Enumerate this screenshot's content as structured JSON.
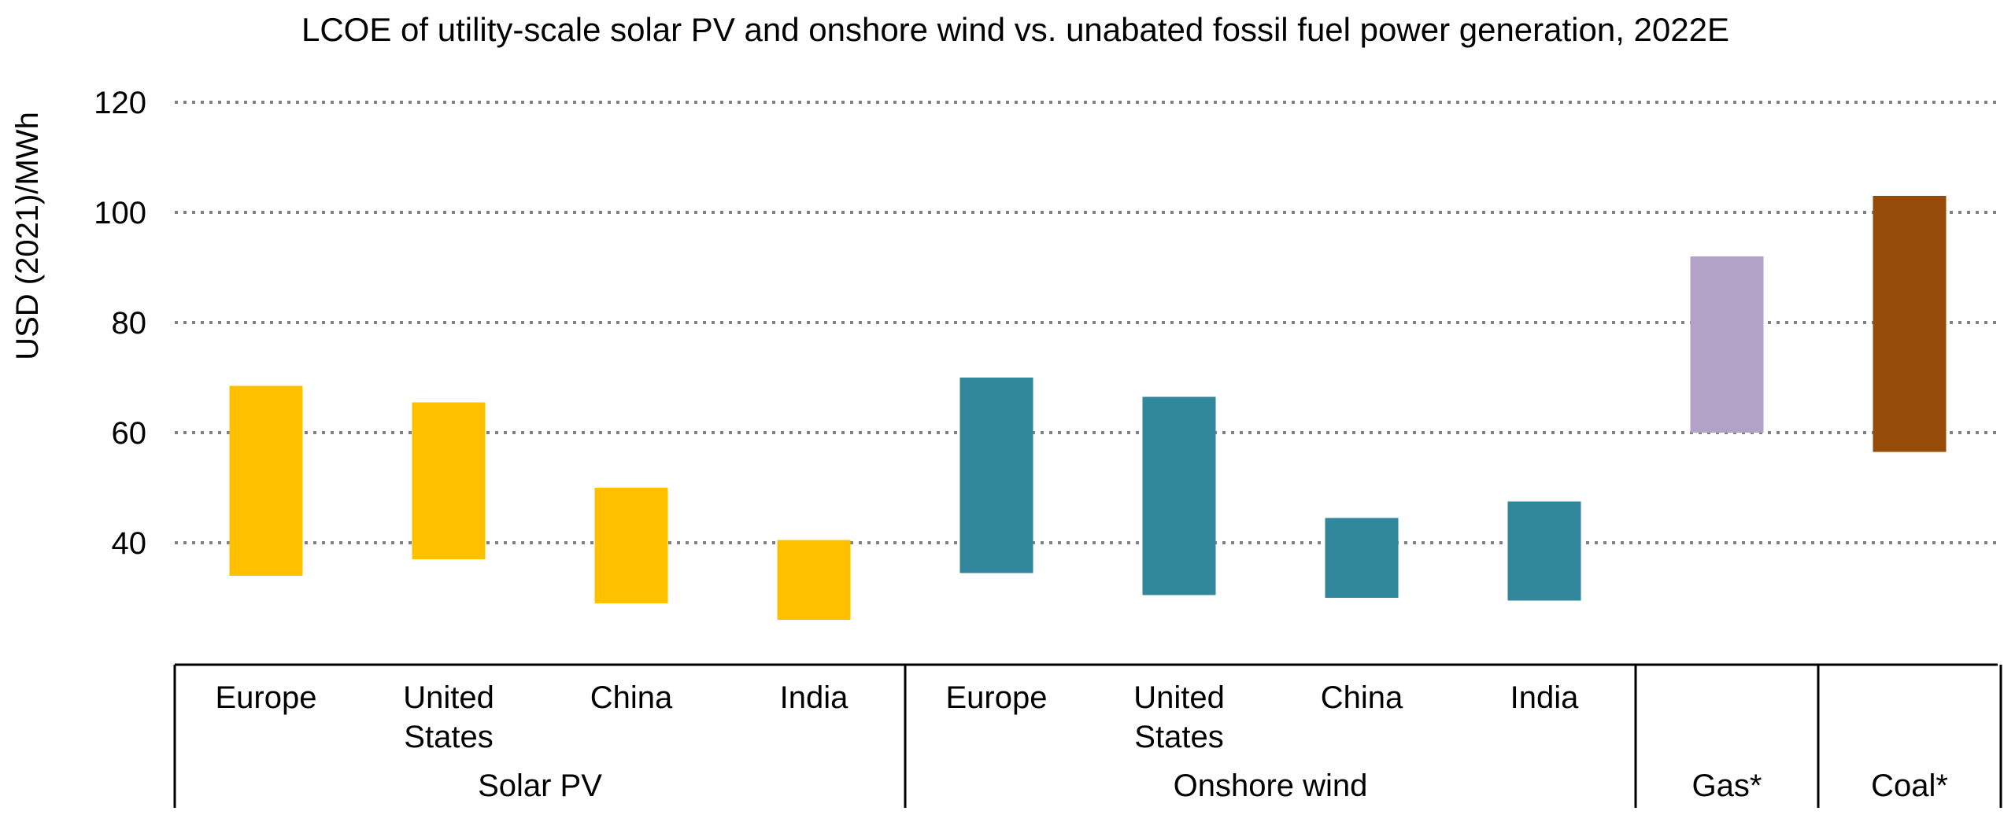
{
  "chart_data": {
    "type": "bar",
    "subtype": "floating-range",
    "title": "LCOE of utility-scale solar PV and onshore wind vs. unabated fossil fuel power generation, 2022E",
    "ylabel": "USD (2021)/MWh",
    "ylim": [
      20,
      120
    ],
    "yticks": [
      40,
      60,
      80,
      100,
      120
    ],
    "grid": true,
    "groups": [
      {
        "name": "Solar PV",
        "color": "#FFC000",
        "categories": [
          {
            "label": [
              "Europe"
            ],
            "low": 34,
            "high": 68.5
          },
          {
            "label": [
              "United",
              "States"
            ],
            "low": 37,
            "high": 65.5
          },
          {
            "label": [
              "China"
            ],
            "low": 29,
            "high": 50
          },
          {
            "label": [
              "India"
            ],
            "low": 26,
            "high": 40.5
          }
        ]
      },
      {
        "name": "Onshore wind",
        "color": "#31879B",
        "categories": [
          {
            "label": [
              "Europe"
            ],
            "low": 34.5,
            "high": 70
          },
          {
            "label": [
              "United",
              "States"
            ],
            "low": 30.5,
            "high": 66.5
          },
          {
            "label": [
              "China"
            ],
            "low": 30,
            "high": 44.5
          },
          {
            "label": [
              "India"
            ],
            "low": 29.5,
            "high": 47.5
          }
        ]
      },
      {
        "name": "Gas*",
        "color": "#B3A2C7",
        "categories": [
          {
            "label": [],
            "low": 60,
            "high": 92
          }
        ]
      },
      {
        "name": "Coal*",
        "color": "#964B09",
        "categories": [
          {
            "label": [],
            "low": 56.5,
            "high": 103
          }
        ]
      }
    ]
  }
}
